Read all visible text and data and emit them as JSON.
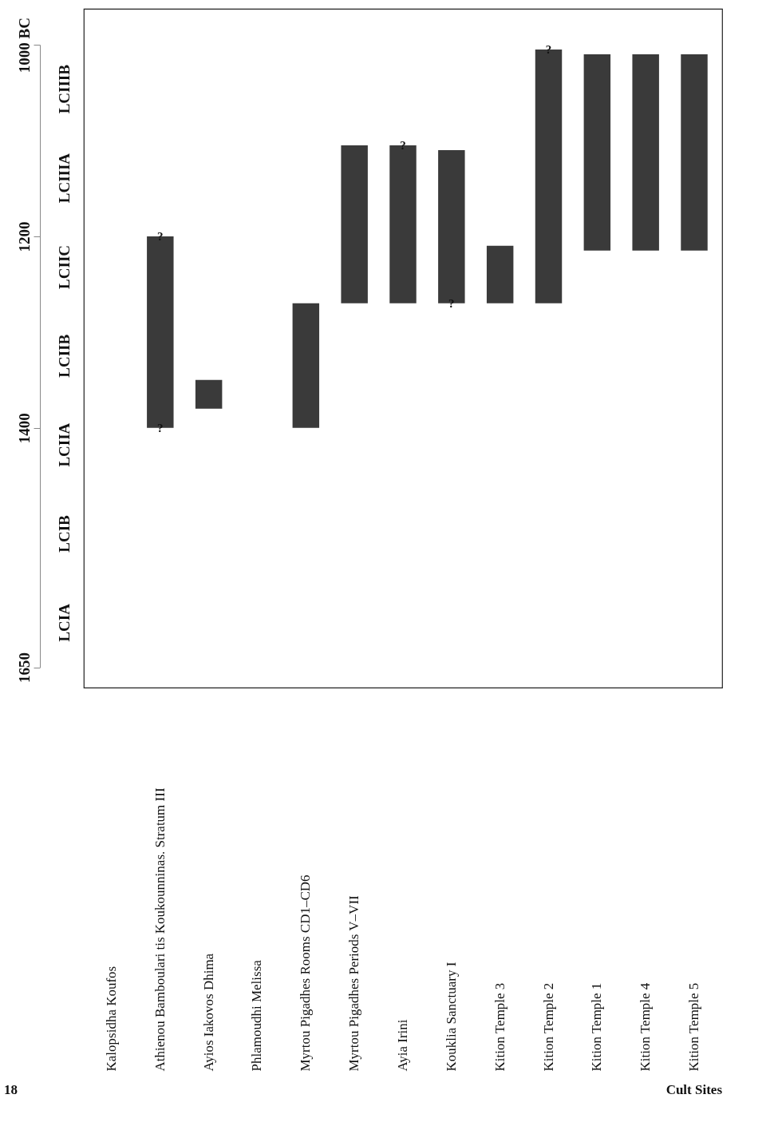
{
  "chart_data": {
    "type": "bar",
    "categories": [
      "Kalopsidha Koufos",
      "Athienou Bamboulari tis Koukounninas. Stratum III",
      "Ayios Iakovos Dhima",
      "Phlamoudhi Melissa",
      "Myrtou Pigadhes Rooms CD1–CD6",
      "Myrtou Pigadhes Periods V–VII",
      "Ayia Irini",
      "Kouklia Sanctuary I",
      "Kition Temple 3",
      "Kition Temple 2",
      "Kition Temple 1",
      "Kition Temple 4",
      "Kition Temple 5"
    ],
    "base": [
      null,
      1400,
      1380,
      null,
      1400,
      1270,
      1270,
      1270,
      1270,
      1270,
      1215,
      1215,
      1215
    ],
    "values": [
      null,
      -200,
      -30,
      null,
      -130,
      -165,
      -165,
      -160,
      -60,
      -265,
      -205,
      -205,
      -205
    ],
    "color": "#3a3a3a",
    "ylim": [
      1650,
      1000
    ],
    "yticks": [
      1650,
      1400,
      1200,
      {
        "value": 1000,
        "label": "1000 BC"
      }
    ],
    "grid": false,
    "annotations": [
      {
        "text": "?",
        "x": "Athienou Bamboulari tis Koukounninas. Stratum III",
        "y": 1400
      },
      {
        "text": "?",
        "x": "Athienou Bamboulari tis Koukounninas. Stratum III",
        "y": 1200
      },
      {
        "text": "?",
        "x": "Ayia Irini",
        "y": 1105
      },
      {
        "text": "?",
        "x": "Kouklia Sanctuary I",
        "y": 1270
      },
      {
        "text": "?",
        "x": "Kition Temple 2",
        "y": 1005
      },
      "LCIA",
      "LCIB",
      "LCIIA",
      "LCIIB",
      "LCIIC",
      "LCIIIA",
      "LCIIIB",
      "18",
      "Cult Sites"
    ]
  }
}
